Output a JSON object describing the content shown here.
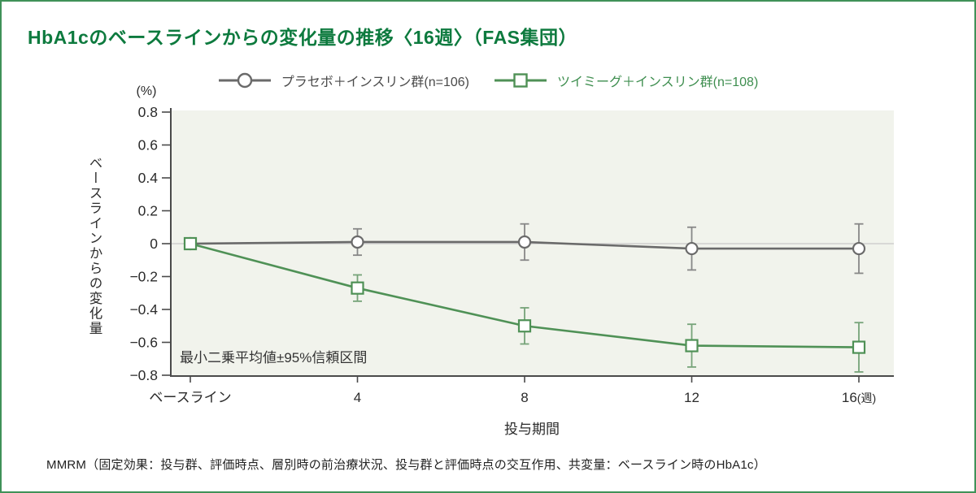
{
  "title": "HbA1cのベースラインからの変化量の推移〈16週〉（FAS集団）",
  "footnote": "MMRM（固定効果：投与群、評価時点、層別時の前治療状況、投与群と評価時点の交互作用、共変量：ベースライン時のHbA1c）",
  "colors": {
    "title_green": "#0d7a3e",
    "border_green": "#3f9158",
    "legend_green_text": "#3e8e4f",
    "series_gray": "#6a6a6a",
    "series_green": "#4f9156",
    "plot_bg": "#f1f3ec",
    "axis": "#4a4a4a",
    "zero_line": "#cfcfcf",
    "text": "#2b2b2b"
  },
  "chart_data": {
    "type": "line",
    "title": "HbA1cのベースラインからの変化量の推移〈16週〉（FAS集団）",
    "categories": [
      "ベースライン",
      "4",
      "8",
      "12",
      "16"
    ],
    "x_unit_suffix": "(週)",
    "xlabel": "投与期間",
    "ylabel": "ベースラインからの変化量",
    "y_unit": "(%)",
    "ylim": [
      -0.8,
      0.8
    ],
    "ytick_step": 0.2,
    "grid": false,
    "legend_position": "top",
    "annotation": "最小二乗平均値±95%信頼区間",
    "error_bars": "95% CI",
    "series": [
      {
        "name": "プラセボ＋インスリン群(n=106)",
        "marker": "circle",
        "color": "#6a6a6a",
        "ci_color": "#878787",
        "values": [
          0,
          0.01,
          0.01,
          -0.03,
          -0.03
        ],
        "ci": [
          0,
          0.08,
          0.11,
          0.13,
          0.15
        ]
      },
      {
        "name": "ツイミーグ＋インスリン群(n=108)",
        "marker": "square",
        "color": "#4f9156",
        "ci_color": "#76a379",
        "values": [
          0,
          -0.27,
          -0.5,
          -0.62,
          -0.63
        ],
        "ci": [
          0,
          0.08,
          0.11,
          0.13,
          0.15
        ]
      }
    ]
  }
}
